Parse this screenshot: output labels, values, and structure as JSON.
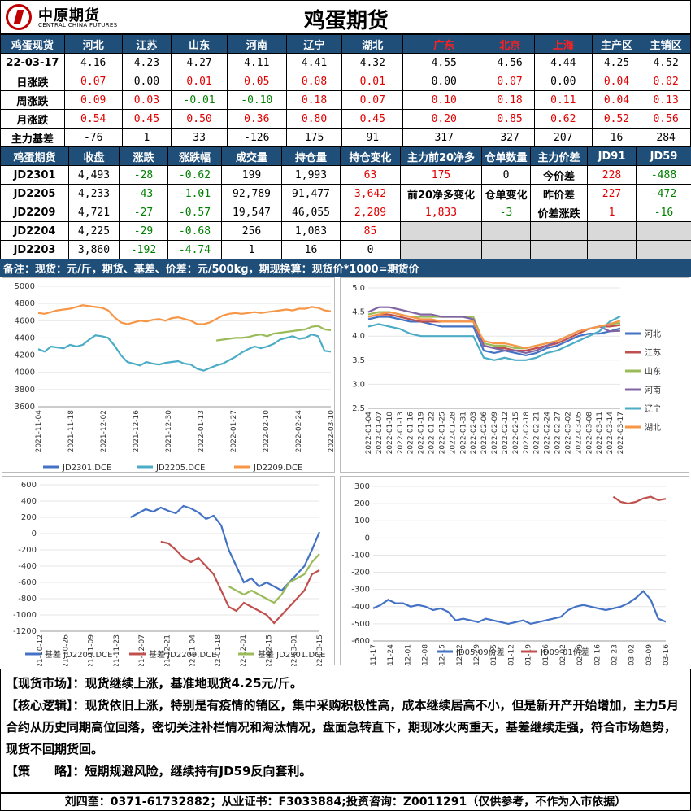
{
  "title": "鸡蛋期货",
  "logo": {
    "cn": "中原期货",
    "en": "CENTRAL CHINA FUTURES"
  },
  "spot_header": [
    "鸡蛋现货",
    "河北",
    "江苏",
    "山东",
    "河南",
    "辽宁",
    "湖北",
    "广东",
    "北京",
    "上海",
    "主产区",
    "主销区"
  ],
  "spot_rows": [
    {
      "label": "22-03-17",
      "vals": [
        "4.16",
        "4.23",
        "4.27",
        "4.11",
        "4.41",
        "4.32",
        "4.55",
        "4.56",
        "4.44",
        "4.25",
        "4.52"
      ]
    },
    {
      "label": "日涨跌",
      "vals": [
        "0.07",
        "0.00",
        "0.01",
        "0.05",
        "0.08",
        "0.01",
        "0.00",
        "0.07",
        "0.00",
        "0.04",
        "0.02"
      ]
    },
    {
      "label": "周涨跌",
      "vals": [
        "0.09",
        "0.03",
        "-0.01",
        "-0.10",
        "0.18",
        "0.07",
        "0.10",
        "0.18",
        "0.11",
        "0.04",
        "0.13"
      ]
    },
    {
      "label": "月涨跌",
      "vals": [
        "0.54",
        "0.45",
        "0.50",
        "0.36",
        "0.80",
        "0.45",
        "0.20",
        "0.85",
        "0.62",
        "0.52",
        "0.56"
      ]
    },
    {
      "label": "主力基差",
      "vals": [
        "-76",
        "1",
        "33",
        "-126",
        "175",
        "91",
        "317",
        "327",
        "207",
        "16",
        "284"
      ]
    }
  ],
  "fut_header": [
    "鸡蛋期货",
    "收盘",
    "涨跌",
    "涨跌幅",
    "成交量",
    "持仓量",
    "持仓变化",
    "主力前20净多",
    "仓单数量",
    "主力价差",
    "JD91",
    "JD59"
  ],
  "fut_rows": [
    [
      "JD2301",
      "4,493",
      "-28",
      "-0.62",
      "199",
      "1,993",
      "63",
      "175",
      "0",
      "今价差",
      "228",
      "-488"
    ],
    [
      "JD2205",
      "4,233",
      "-43",
      "-1.01",
      "92,789",
      "91,477",
      "3,642",
      "前20净多变化",
      "仓单变化",
      "昨价差",
      "227",
      "-472"
    ],
    [
      "JD2209",
      "4,721",
      "-27",
      "-0.57",
      "19,547",
      "46,055",
      "2,289",
      "1,833",
      "-3",
      "价差涨跌",
      "1",
      "-16"
    ],
    [
      "JD2204",
      "4,225",
      "-29",
      "-0.68",
      "256",
      "1,083",
      "85",
      "",
      "",
      "",
      "",
      ""
    ],
    [
      "JD2203",
      "3,860",
      "-192",
      "-4.74",
      "1",
      "16",
      "0",
      "",
      "",
      "",
      "",
      ""
    ]
  ],
  "note": "备注：现货：元/斤，期货、基差、价差：元/500kg，期现换算：现货价*1000=期货价",
  "chart_data": [
    {
      "type": "line",
      "ylim": [
        3600,
        5000
      ],
      "yticks": [
        "5000",
        "4800",
        "4600",
        "4400",
        "4200",
        "4000",
        "3800",
        "3600"
      ],
      "xticks": [
        "2021-11-04",
        "2021-11-18",
        "2021-12-02",
        "2021-12-16",
        "2021-12-30",
        "2022-01-13",
        "2022-01-27",
        "2022-02-10",
        "2022-02-24",
        "2022-03-10"
      ],
      "series": [
        {
          "name": "JD2301.DCE",
          "color": "#4472c4",
          "values": []
        },
        {
          "name": "JD2205.DCE",
          "color": "#4bacc6",
          "values": [
            4270,
            4240,
            4300,
            4290,
            4280,
            4320,
            4300,
            4320,
            4380,
            4430,
            4420,
            4400,
            4310,
            4200,
            4120,
            4100,
            4080,
            4120,
            4100,
            4090,
            4110,
            4120,
            4130,
            4100,
            4090,
            4040,
            4020,
            4050,
            4080,
            4100,
            4140,
            4180,
            4230,
            4270,
            4300,
            4280,
            4300,
            4330,
            4380,
            4400,
            4420,
            4390,
            4400,
            4440,
            4420,
            4250,
            4240
          ]
        },
        {
          "name": "JD2209.DCE",
          "color": "#f79646",
          "values": [
            4690,
            4680,
            4700,
            4720,
            4730,
            4740,
            4760,
            4780,
            4770,
            4760,
            4750,
            4720,
            4640,
            4580,
            4560,
            4580,
            4600,
            4590,
            4610,
            4620,
            4600,
            4630,
            4640,
            4620,
            4600,
            4560,
            4560,
            4580,
            4620,
            4660,
            4680,
            4690,
            4680,
            4690,
            4700,
            4690,
            4700,
            4710,
            4720,
            4730,
            4720,
            4740,
            4740,
            4760,
            4750,
            4720,
            4710
          ]
        },
        {
          "name": "JD2301.DCE",
          "color": "#9bbb59",
          "values": [
            null,
            null,
            null,
            null,
            null,
            null,
            null,
            null,
            null,
            null,
            null,
            null,
            null,
            null,
            null,
            null,
            null,
            null,
            null,
            null,
            null,
            null,
            null,
            null,
            null,
            null,
            null,
            null,
            4370,
            4380,
            4390,
            4400,
            4400,
            4410,
            4430,
            4440,
            4420,
            4450,
            4460,
            4470,
            4480,
            4490,
            4500,
            4530,
            4540,
            4500,
            4490
          ]
        }
      ],
      "legend": [
        "JD2301.DCE",
        "JD2205.DCE",
        "JD2209.DCE"
      ]
    },
    {
      "type": "line",
      "ylim": [
        2.5,
        5.0
      ],
      "yticks": [
        "5.0",
        "4.5",
        "4.0",
        "3.5",
        "3.0",
        "2.5"
      ],
      "xticks": [
        "2022-01-04",
        "2022-01-07",
        "2022-01-10",
        "2022-01-13",
        "2022-01-16",
        "2022-01-19",
        "2022-01-22",
        "2022-01-25",
        "2022-01-28",
        "2022-01-31",
        "2022-02-03",
        "2022-02-06",
        "2022-02-09",
        "2022-02-12",
        "2022-02-15",
        "2022-02-18",
        "2022-02-21",
        "2022-02-24",
        "2022-02-27",
        "2022-03-02",
        "2022-03-05",
        "2022-03-08",
        "2022-03-11",
        "2022-03-14",
        "2022-03-17"
      ],
      "series": [
        {
          "name": "河北",
          "color": "#4472c4",
          "values": [
            4.35,
            4.4,
            4.4,
            4.35,
            4.3,
            4.3,
            4.25,
            4.2,
            4.2,
            4.2,
            4.2,
            3.7,
            3.65,
            3.7,
            3.65,
            3.6,
            3.65,
            3.75,
            3.8,
            3.9,
            4.0,
            4.05,
            4.05,
            4.1,
            4.16
          ]
        },
        {
          "name": "江苏",
          "color": "#c0504d",
          "values": [
            4.4,
            4.45,
            4.45,
            4.4,
            4.35,
            4.3,
            4.3,
            4.3,
            4.3,
            4.3,
            4.3,
            3.8,
            3.75,
            3.75,
            3.7,
            3.7,
            3.75,
            3.8,
            3.85,
            3.95,
            4.05,
            4.15,
            4.2,
            4.2,
            4.23
          ]
        },
        {
          "name": "山东",
          "color": "#9bbb59",
          "values": [
            4.45,
            4.5,
            4.5,
            4.45,
            4.4,
            4.4,
            4.4,
            4.4,
            4.4,
            4.4,
            4.4,
            3.85,
            3.8,
            3.8,
            3.75,
            3.75,
            3.8,
            3.85,
            3.9,
            4.0,
            4.1,
            4.15,
            4.2,
            4.25,
            4.27
          ]
        },
        {
          "name": "河南",
          "color": "#8064a2",
          "values": [
            4.5,
            4.6,
            4.6,
            4.55,
            4.5,
            4.45,
            4.45,
            4.4,
            4.4,
            4.4,
            4.35,
            3.8,
            3.75,
            3.7,
            3.7,
            3.65,
            3.7,
            3.8,
            3.9,
            4.0,
            4.1,
            4.15,
            4.2,
            4.1,
            4.11
          ]
        },
        {
          "name": "辽宁",
          "color": "#4bacc6",
          "values": [
            4.2,
            4.25,
            4.2,
            4.15,
            4.05,
            4.0,
            4.0,
            4.0,
            4.0,
            4.0,
            4.0,
            3.55,
            3.5,
            3.55,
            3.5,
            3.5,
            3.55,
            3.65,
            3.7,
            3.8,
            3.9,
            4.0,
            4.1,
            4.3,
            4.41
          ]
        },
        {
          "name": "湖北",
          "color": "#f79646",
          "values": [
            4.4,
            4.45,
            4.5,
            4.45,
            4.4,
            4.35,
            4.35,
            4.3,
            4.3,
            4.3,
            4.3,
            3.9,
            3.85,
            3.85,
            3.8,
            3.75,
            3.8,
            3.85,
            3.9,
            4.0,
            4.1,
            4.15,
            4.2,
            4.25,
            4.32
          ]
        }
      ],
      "legend": [
        "河北",
        "江苏",
        "山东",
        "河南",
        "辽宁",
        "湖北"
      ]
    },
    {
      "type": "line",
      "ylim": [
        -1200,
        600
      ],
      "yticks": [
        "600",
        "400",
        "200",
        "0",
        "-200",
        "-400",
        "-600",
        "-800",
        "-1000",
        "-1200"
      ],
      "xticks": [
        "2021-10-12",
        "2021-10-26",
        "2021-11-09",
        "2021-11-23",
        "2021-12-07",
        "2021-12-21",
        "2022-01-04",
        "2022-01-18",
        "2022-02-01",
        "2022-02-15",
        "2022-03-01",
        "2022-03-15"
      ],
      "series": [
        {
          "name": "基差 JD2205.DCE",
          "color": "#4472c4",
          "values": [
            null,
            null,
            null,
            null,
            null,
            null,
            null,
            null,
            null,
            null,
            null,
            null,
            200,
            250,
            300,
            270,
            320,
            280,
            250,
            340,
            310,
            260,
            180,
            220,
            100,
            -200,
            -400,
            -600,
            -550,
            -650,
            -600,
            -650,
            -700,
            -600,
            -500,
            -400,
            -200,
            20
          ]
        },
        {
          "name": "基差 JD2209.DCE",
          "color": "#c0504d",
          "values": [
            null,
            null,
            null,
            null,
            null,
            null,
            null,
            null,
            null,
            null,
            null,
            null,
            null,
            null,
            null,
            null,
            -100,
            -120,
            -200,
            -300,
            -350,
            -300,
            -400,
            -500,
            -700,
            -900,
            -950,
            -850,
            -900,
            -950,
            -1000,
            -1100,
            -1000,
            -900,
            -800,
            -700,
            -500,
            -450
          ]
        },
        {
          "name": "基差 JD2301.DCE",
          "color": "#9bbb59",
          "values": [
            null,
            null,
            null,
            null,
            null,
            null,
            null,
            null,
            null,
            null,
            null,
            null,
            null,
            null,
            null,
            null,
            null,
            null,
            null,
            null,
            null,
            null,
            null,
            null,
            null,
            -650,
            -700,
            -750,
            -700,
            -750,
            -800,
            -850,
            -750,
            -600,
            -550,
            -500,
            -350,
            -250
          ]
        }
      ],
      "legend": [
        "基差 JD2205.DCE",
        "基差 JD2209.DCE",
        "基差 JD2301.DCE"
      ]
    },
    {
      "type": "line",
      "ylim": [
        -600,
        300
      ],
      "yticks": [
        "300",
        "200",
        "100",
        "0",
        "-100",
        "-200",
        "-300",
        "-400",
        "-500",
        "-600"
      ],
      "xticks": [
        "2021-11-17",
        "2021-11-24",
        "2021-12-01",
        "2021-12-08",
        "2021-12-15",
        "2021-12-22",
        "2021-12-29",
        "2022-01-05",
        "2022-01-12",
        "2022-01-19",
        "2022-01-26",
        "2022-02-02",
        "2022-02-09",
        "2022-02-16",
        "2022-02-23",
        "2022-03-02",
        "2022-03-09",
        "2022-03-16"
      ],
      "series": [
        {
          "name": "JD05-09价差",
          "color": "#4472c4",
          "values": [
            -410,
            -390,
            -360,
            -380,
            -380,
            -400,
            -390,
            -400,
            -420,
            -410,
            -430,
            -480,
            -470,
            -480,
            -490,
            -470,
            -480,
            -490,
            -500,
            -490,
            -480,
            -500,
            -490,
            -480,
            -470,
            -460,
            -420,
            -400,
            -390,
            -400,
            -410,
            -420,
            -410,
            -400,
            -380,
            -350,
            -310,
            -360,
            -470,
            -488
          ]
        },
        {
          "name": "JD09-01价差",
          "color": "#c0504d",
          "values": [
            null,
            null,
            null,
            null,
            null,
            null,
            null,
            null,
            null,
            null,
            null,
            null,
            null,
            null,
            null,
            null,
            null,
            null,
            null,
            null,
            null,
            null,
            null,
            null,
            null,
            null,
            null,
            null,
            null,
            null,
            null,
            null,
            240,
            210,
            200,
            210,
            230,
            240,
            220,
            228
          ]
        }
      ],
      "legend": [
        "JD05-09价差",
        "JD09-01价差"
      ]
    }
  ],
  "commentary": [
    {
      "tag": "【现货市场】：",
      "text": "现货继续上涨，基准地现货4.25元/斤。"
    },
    {
      "tag": "【核心逻辑】：",
      "text": "现货依旧上涨，特别是有疫情的销区，集中采购积极性高，成本继续居高不小，但是新开产开始增加，主力5月合约从历史同期高位回落，密切关注补栏情况和淘汰情况，盘面急转直下，期现冰火两重天，基差继续走强，符合市场趋势，现货不回期货回。"
    },
    {
      "tag": "【策　　略】：",
      "text": "短期规避风险，继续持有JD59反向套利。"
    }
  ],
  "footer": "刘四奎：0371-61732882；从业证书：F3033884;投资咨询：Z0011291（仅供参考，不作为入市依据）",
  "colors": {
    "header_bg": "#1f4e79",
    "up": "#e00000",
    "down": "#008000"
  }
}
